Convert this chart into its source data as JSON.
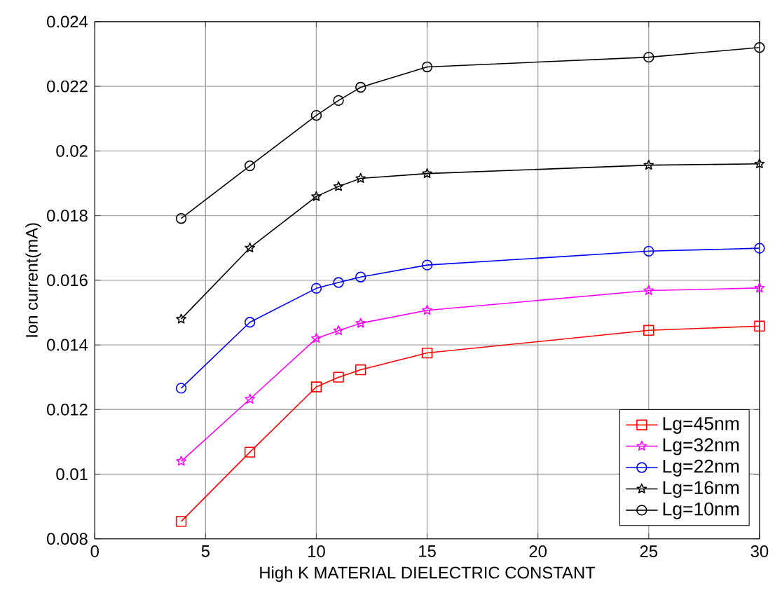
{
  "chart_data": {
    "type": "line",
    "xlabel": "High K MATERIAL DIELECTRIC CONSTANT",
    "ylabel": "Ion current(mA)",
    "x": [
      3.9,
      7,
      10,
      11,
      12,
      15,
      25,
      30
    ],
    "series": [
      {
        "name": "Lg=45nm",
        "color": "#ff0000",
        "marker": "square",
        "values": [
          0.00854,
          0.01068,
          0.0127,
          0.013,
          0.01323,
          0.01375,
          0.01445,
          0.01458
        ]
      },
      {
        "name": "Lg=32nm",
        "color": "#ff00ff",
        "marker": "star",
        "values": [
          0.0104,
          0.01232,
          0.0142,
          0.01444,
          0.01467,
          0.01507,
          0.01568,
          0.01576
        ]
      },
      {
        "name": "Lg=22nm",
        "color": "#0000ff",
        "marker": "circle",
        "values": [
          0.01266,
          0.0147,
          0.01575,
          0.01593,
          0.0161,
          0.01647,
          0.0169,
          0.01699
        ]
      },
      {
        "name": "Lg=16nm",
        "color": "#000000",
        "marker": "star",
        "values": [
          0.0148,
          0.017,
          0.01859,
          0.0189,
          0.01915,
          0.0193,
          0.01956,
          0.0196
        ]
      },
      {
        "name": "Lg=10nm",
        "color": "#000000",
        "marker": "circle",
        "values": [
          0.01791,
          0.01954,
          0.0211,
          0.02156,
          0.02197,
          0.0226,
          0.0229,
          0.0232
        ]
      }
    ],
    "xlim": [
      0,
      30
    ],
    "ylim": [
      0.008,
      0.024
    ],
    "xticks": [
      0,
      5,
      10,
      15,
      20,
      25,
      30
    ],
    "yticks": [
      0.008,
      0.01,
      0.012,
      0.014,
      0.016,
      0.018,
      0.02,
      0.022,
      0.024
    ],
    "grid": true,
    "legend": "bottom right",
    "line_style": "solid"
  }
}
